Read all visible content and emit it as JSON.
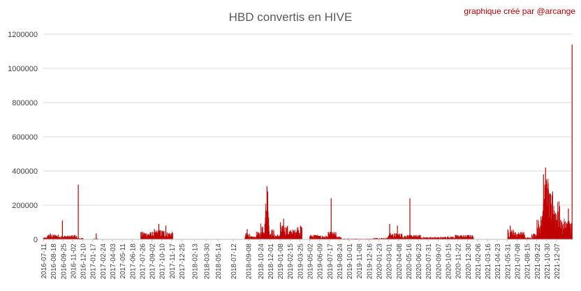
{
  "chart_data": {
    "type": "bar",
    "title": "HBD convertis en HIVE",
    "subtitle": "",
    "credit": "graphique créé par @arcange",
    "xlabel": "",
    "ylabel": "",
    "ylim": [
      0,
      1200000
    ],
    "yticks": [
      0,
      200000,
      400000,
      600000,
      800000,
      1000000,
      1200000
    ],
    "ytick_labels": [
      "0",
      "200000",
      "400000",
      "600000",
      "800000",
      "1000000",
      "1200000"
    ],
    "x_start": "2016-07-11",
    "x_end": "2022-02-04",
    "x_tick_labels": [
      "2016-07-11",
      "2016-08-18",
      "2016-09-25",
      "2016-11-02",
      "2016-12-10",
      "2017-01-17",
      "2017-02-24",
      "2017-04-03",
      "2017-05-11",
      "2017-06-18",
      "2017-07-26",
      "2017-09-02",
      "2017-10-10",
      "2017-11-17",
      "2017-12-25",
      "2018-02-13",
      "2018-03-30",
      "2018-05-14",
      "2018-07-12",
      "2018-09-08",
      "2018-10-24",
      "2018-12-01",
      "2019-01-08",
      "2019-02-15",
      "2019-03-25",
      "2019-05-02",
      "2019-06-09",
      "2019-07-17",
      "2019-08-24",
      "2019-10-01",
      "2019-11-08",
      "2019-12-16",
      "2020-01-23",
      "2020-03-01",
      "2020-04-08",
      "2020-05-16",
      "2020-06-23",
      "2020-07-31",
      "2020-09-07",
      "2020-10-15",
      "2020-11-22",
      "2020-12-30",
      "2021-02-06",
      "2021-03-16",
      "2021-04-23",
      "2021-05-31",
      "2021-07-08",
      "2021-08-15",
      "2021-09-22",
      "2021-10-30",
      "2021-12-07"
    ],
    "bar_color": "#c00000",
    "grid": true,
    "legend": "none",
    "segments": [
      {
        "from": "2016-07-11",
        "to": "2016-07-24",
        "level": 8000
      },
      {
        "from": "2016-07-25",
        "to": "2016-09-10",
        "level": 20000
      },
      {
        "from": "2016-09-11",
        "to": "2016-10-22",
        "level": 15000
      },
      {
        "from": "2016-10-23",
        "to": "2016-11-15",
        "level": 18000
      },
      {
        "from": "2016-11-16",
        "to": "2016-12-10",
        "level": 6000
      },
      {
        "from": "2017-01-20",
        "to": "2017-02-05",
        "level": 4000
      },
      {
        "from": "2017-07-20",
        "to": "2017-09-15",
        "level": 30000
      },
      {
        "from": "2017-09-16",
        "to": "2017-10-20",
        "level": 38000
      },
      {
        "from": "2017-10-21",
        "to": "2017-11-20",
        "level": 30000
      },
      {
        "from": "2018-08-25",
        "to": "2018-09-15",
        "level": 25000
      },
      {
        "from": "2018-09-16",
        "to": "2018-10-05",
        "level": 12000
      },
      {
        "from": "2018-10-06",
        "to": "2018-10-24",
        "level": 30000
      },
      {
        "from": "2018-10-25",
        "to": "2018-11-10",
        "level": 70000
      },
      {
        "from": "2018-11-11",
        "to": "2018-11-25",
        "level": 150000
      },
      {
        "from": "2018-11-26",
        "to": "2018-12-15",
        "level": 40000
      },
      {
        "from": "2018-12-16",
        "to": "2019-01-08",
        "level": 20000
      },
      {
        "from": "2019-01-09",
        "to": "2019-02-05",
        "level": 55000
      },
      {
        "from": "2019-02-06",
        "to": "2019-03-05",
        "level": 40000
      },
      {
        "from": "2019-03-06",
        "to": "2019-04-01",
        "level": 55000
      },
      {
        "from": "2019-05-01",
        "to": "2019-06-01",
        "level": 20000
      },
      {
        "from": "2019-06-02",
        "to": "2019-07-10",
        "level": 15000
      },
      {
        "from": "2019-07-11",
        "to": "2019-08-10",
        "level": 30000
      },
      {
        "from": "2019-08-11",
        "to": "2019-08-31",
        "level": 12000
      },
      {
        "from": "2019-09-01",
        "to": "2019-12-31",
        "level": 3000
      },
      {
        "from": "2020-01-01",
        "to": "2020-02-25",
        "level": 6000
      },
      {
        "from": "2020-02-26",
        "to": "2020-04-20",
        "level": 25000
      },
      {
        "from": "2020-04-21",
        "to": "2020-05-14",
        "level": 18000
      },
      {
        "from": "2020-05-15",
        "to": "2020-06-30",
        "level": 18000
      },
      {
        "from": "2020-07-01",
        "to": "2020-09-30",
        "level": 10000
      },
      {
        "from": "2020-10-01",
        "to": "2020-11-10",
        "level": 12000
      },
      {
        "from": "2020-11-11",
        "to": "2021-01-20",
        "level": 18000
      },
      {
        "from": "2021-06-01",
        "to": "2021-06-30",
        "level": 40000
      },
      {
        "from": "2021-07-01",
        "to": "2021-08-05",
        "level": 30000
      },
      {
        "from": "2021-08-06",
        "to": "2021-08-31",
        "level": 8000
      },
      {
        "from": "2021-09-01",
        "to": "2021-09-20",
        "level": 25000
      },
      {
        "from": "2021-09-21",
        "to": "2021-10-05",
        "level": 80000
      },
      {
        "from": "2021-10-06",
        "to": "2021-10-20",
        "level": 160000
      },
      {
        "from": "2021-10-21",
        "to": "2021-11-05",
        "level": 250000
      },
      {
        "from": "2021-11-06",
        "to": "2021-11-25",
        "level": 180000
      },
      {
        "from": "2021-11-26",
        "to": "2021-12-20",
        "level": 150000
      },
      {
        "from": "2021-12-21",
        "to": "2022-02-02",
        "level": 80000
      }
    ],
    "spikes": [
      {
        "date": "2016-08-05",
        "value": 35000
      },
      {
        "date": "2016-09-21",
        "value": 110000
      },
      {
        "date": "2016-11-21",
        "value": 320000
      },
      {
        "date": "2017-01-29",
        "value": 35000
      },
      {
        "date": "2017-09-10",
        "value": 60000
      },
      {
        "date": "2017-09-27",
        "value": 90000
      },
      {
        "date": "2017-10-24",
        "value": 80000
      },
      {
        "date": "2018-09-02",
        "value": 60000
      },
      {
        "date": "2018-11-17",
        "value": 310000
      },
      {
        "date": "2018-11-20",
        "value": 280000
      },
      {
        "date": "2019-01-08",
        "value": 100000
      },
      {
        "date": "2019-01-20",
        "value": 120000
      },
      {
        "date": "2019-07-22",
        "value": 240000
      },
      {
        "date": "2020-03-03",
        "value": 90000
      },
      {
        "date": "2020-04-02",
        "value": 80000
      },
      {
        "date": "2020-05-20",
        "value": 240000
      },
      {
        "date": "2021-06-10",
        "value": 80000
      },
      {
        "date": "2021-10-16",
        "value": 380000
      },
      {
        "date": "2021-10-24",
        "value": 420000
      },
      {
        "date": "2021-11-02",
        "value": 300000
      },
      {
        "date": "2021-11-20",
        "value": 280000
      },
      {
        "date": "2022-01-20",
        "value": 180000
      },
      {
        "date": "2022-02-03",
        "value": 1140000
      }
    ]
  }
}
